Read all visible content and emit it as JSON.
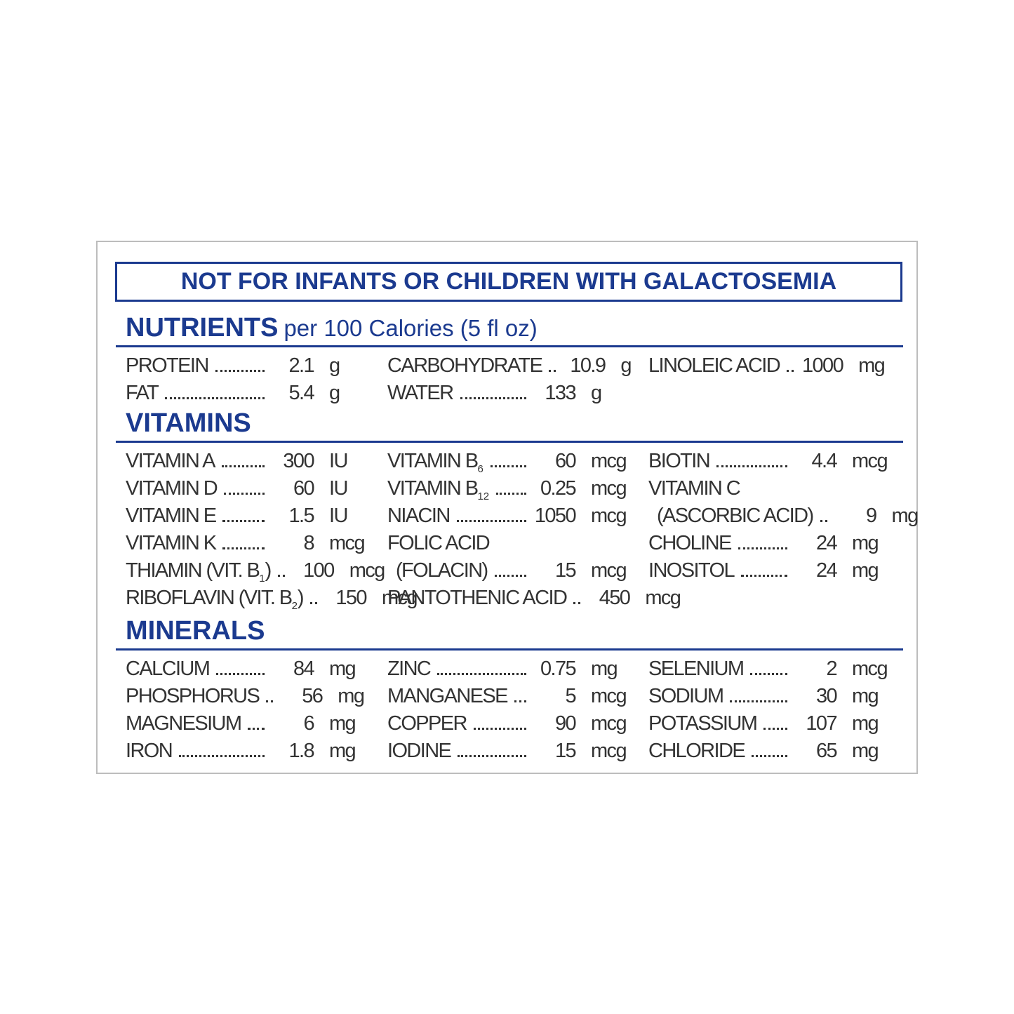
{
  "warning": "NOT FOR INFANTS OR CHILDREN WITH GALACTOSEMIA",
  "sections": [
    {
      "title": "NUTRIENTS",
      "subtitle": "per 100 Calories (5 fl oz)",
      "columns": [
        [
          {
            "name": "PROTEIN",
            "value": 2.1,
            "unit": "g"
          },
          {
            "name": "FAT",
            "value": 5.4,
            "unit": "g"
          }
        ],
        [
          {
            "name": "CARBOHYDRATE",
            "value": 10.9,
            "unit": "g"
          },
          {
            "name": "WATER",
            "value": 133,
            "unit": "g"
          }
        ],
        [
          {
            "name": "LINOLEIC ACID",
            "value": 1000,
            "unit": "mg"
          }
        ]
      ]
    },
    {
      "title": "VITAMINS",
      "columns": [
        [
          {
            "name": "VITAMIN A",
            "value": 300,
            "unit": "IU"
          },
          {
            "name": "VITAMIN D",
            "value": 60,
            "unit": "IU"
          },
          {
            "name": "VITAMIN E",
            "value": 1.5,
            "unit": "IU"
          },
          {
            "name": "VITAMIN K",
            "value": 8,
            "unit": "mcg"
          },
          {
            "name": "THIAMIN (VIT. B",
            "sub": "1",
            "suffix": ")",
            "value": 100,
            "unit": "mcg"
          },
          {
            "name": "RIBOFLAVIN (VIT. B",
            "sub": "2",
            "suffix": ")",
            "value": 150,
            "unit": "mcg"
          }
        ],
        [
          {
            "name": "VITAMIN B",
            "sub": "6",
            "value": 60,
            "unit": "mcg"
          },
          {
            "name": "VITAMIN B",
            "sub": "12",
            "value": 0.25,
            "unit": "mcg"
          },
          {
            "name": "NIACIN",
            "value": 1050,
            "unit": "mcg"
          },
          {
            "name": "FOLIC ACID",
            "name_line2": "(FOLACIN)",
            "value": 15,
            "unit": "mcg"
          },
          {
            "name": "PANTOTHENIC ACID",
            "value": 450,
            "unit": "mcg"
          }
        ],
        [
          {
            "name": "BIOTIN",
            "value": 4.4,
            "unit": "mcg"
          },
          {
            "name": "VITAMIN C",
            "name_line2": "(ASCORBIC ACID)",
            "value": 9,
            "unit": "mg"
          },
          {
            "name": "CHOLINE",
            "value": 24,
            "unit": "mg"
          },
          {
            "name": "INOSITOL",
            "value": 24,
            "unit": "mg"
          }
        ]
      ]
    },
    {
      "title": "MINERALS",
      "columns": [
        [
          {
            "name": "CALCIUM",
            "value": 84,
            "unit": "mg"
          },
          {
            "name": "PHOSPHORUS",
            "value": 56,
            "unit": "mg"
          },
          {
            "name": "MAGNESIUM",
            "value": 6,
            "unit": "mg"
          },
          {
            "name": "IRON",
            "value": 1.8,
            "unit": "mg"
          }
        ],
        [
          {
            "name": "ZINC",
            "value": 0.75,
            "unit": "mg"
          },
          {
            "name": "MANGANESE",
            "value": 5,
            "unit": "mcg"
          },
          {
            "name": "COPPER",
            "value": 90,
            "unit": "mcg"
          },
          {
            "name": "IODINE",
            "value": 15,
            "unit": "mcg"
          }
        ],
        [
          {
            "name": "SELENIUM",
            "value": 2,
            "unit": "mcg"
          },
          {
            "name": "SODIUM",
            "value": 30,
            "unit": "mg"
          },
          {
            "name": "POTASSIUM",
            "value": 107,
            "unit": "mg"
          },
          {
            "name": "CHLORIDE",
            "value": 65,
            "unit": "mg"
          }
        ]
      ]
    }
  ]
}
